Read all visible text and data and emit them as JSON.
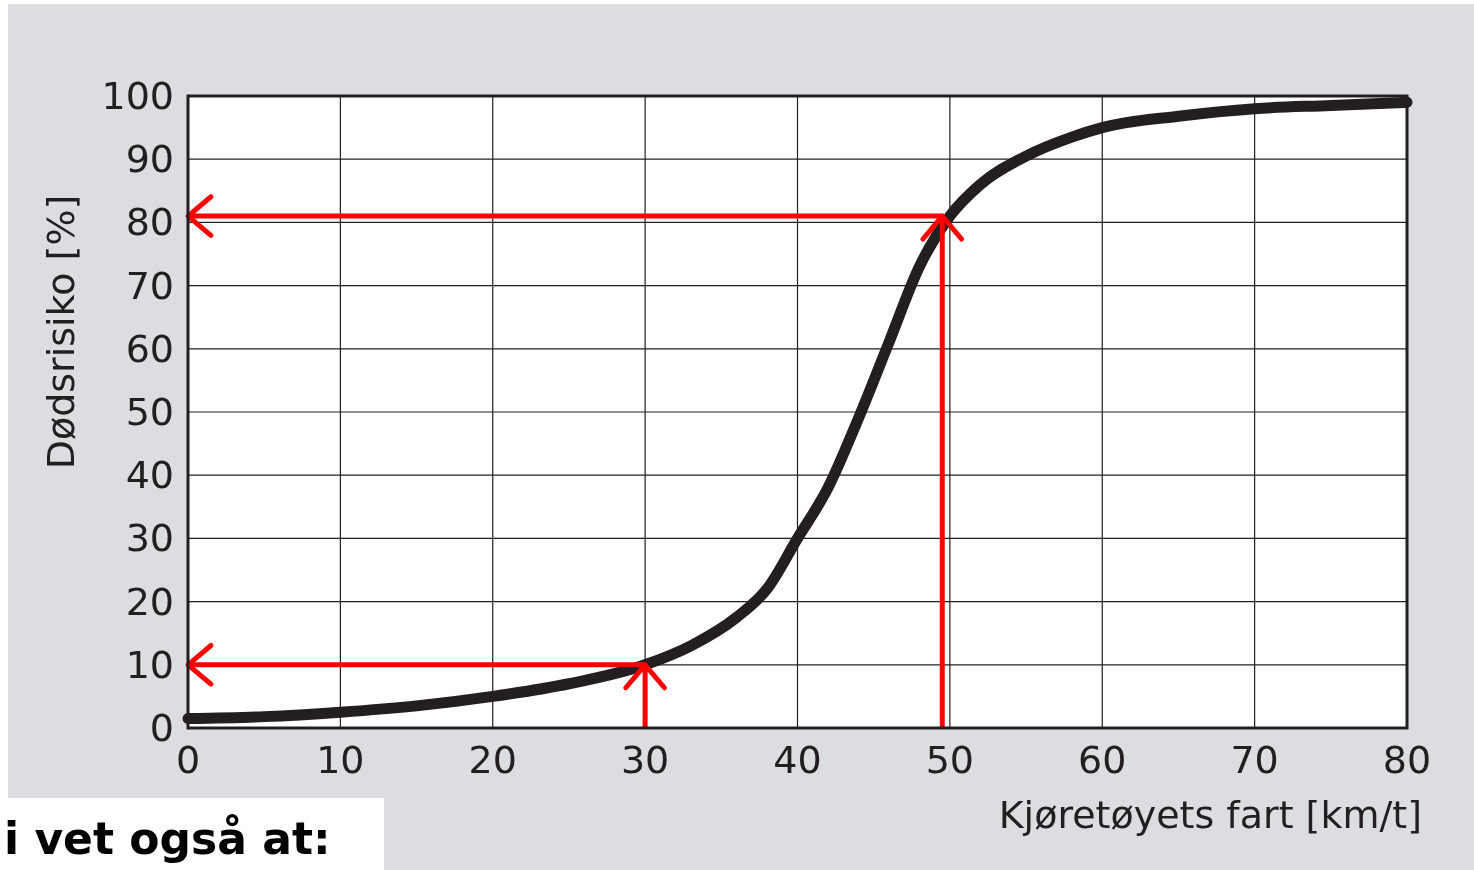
{
  "chart_data": {
    "type": "line",
    "xlabel": "Kjøretøyets fart [km/t]",
    "ylabel": "Dødsrisiko [%]",
    "xlim": [
      0,
      80
    ],
    "xticks": [
      0,
      10,
      20,
      30,
      40,
      50,
      60,
      70,
      80
    ],
    "ylim": [
      0,
      100
    ],
    "yticks": [
      0,
      10,
      20,
      30,
      40,
      50,
      60,
      70,
      80,
      90,
      100
    ],
    "grid": true,
    "series": [
      {
        "color": "#231f20",
        "x": [
          0,
          5,
          10,
          15,
          20,
          25,
          30,
          33,
          36,
          38,
          40,
          42,
          44,
          46,
          48,
          50,
          52,
          55,
          58,
          60,
          65,
          70,
          75,
          80
        ],
        "values": [
          1.5,
          1.8,
          2.5,
          3.5,
          5,
          7,
          10,
          13,
          17.5,
          22,
          30,
          38,
          49,
          61,
          73,
          81,
          86,
          90.5,
          93.5,
          95,
          96.8,
          98,
          98.5,
          99
        ]
      },
      {
        "color": "#ff0000",
        "x": [
          0,
          30,
          30
        ],
        "values": [
          10,
          10,
          0
        ]
      },
      {
        "color": "#ff0000",
        "x": [
          0,
          49.5,
          49.5
        ],
        "values": [
          81,
          81,
          0
        ]
      }
    ],
    "annotations": [
      "i vet også at:"
    ]
  }
}
